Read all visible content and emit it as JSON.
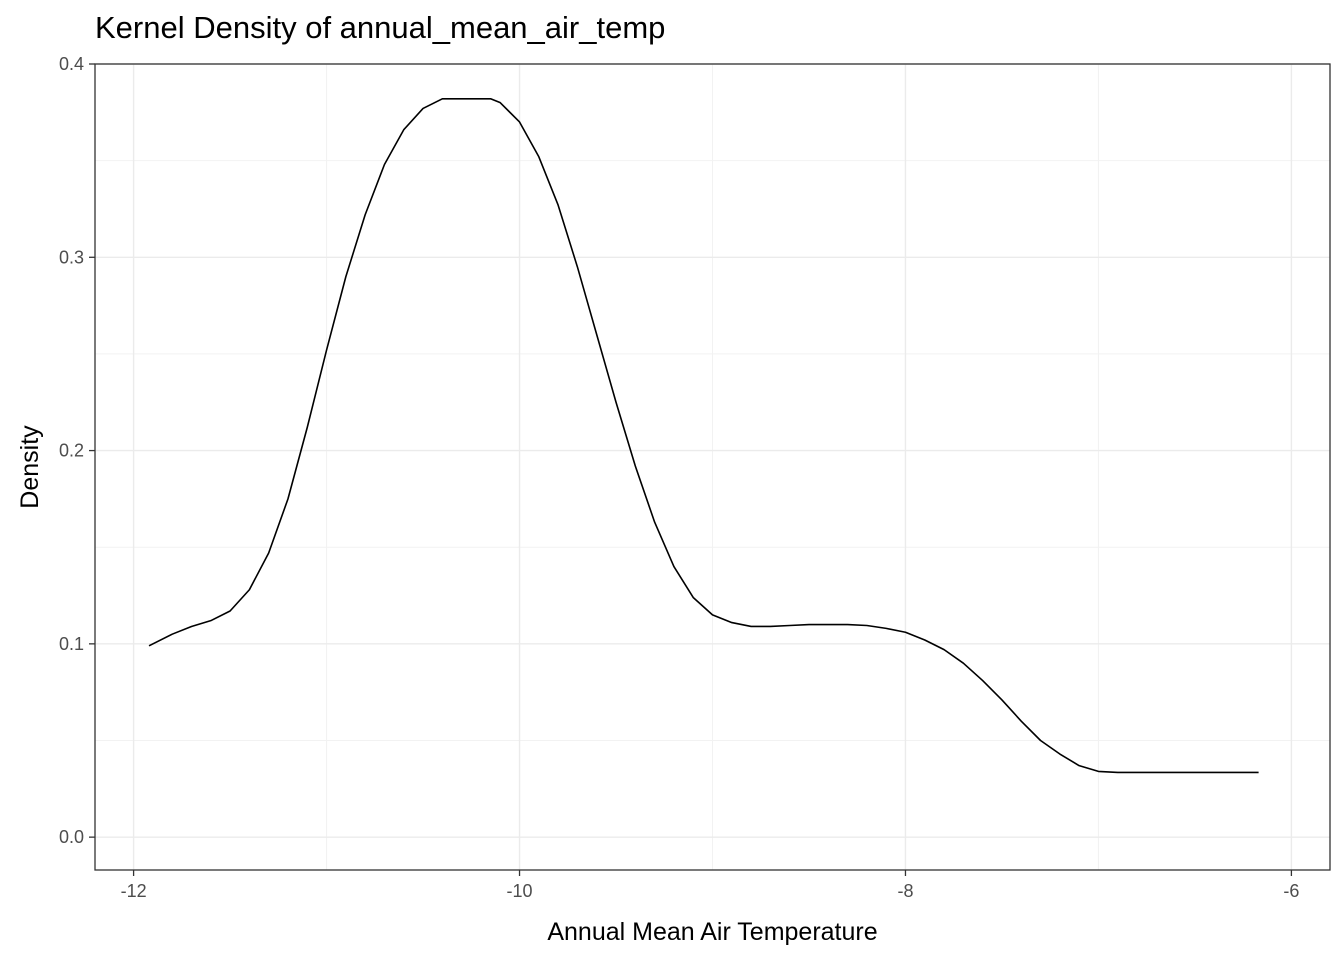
{
  "chart_data": {
    "type": "line",
    "title": "Kernel Density of annual_mean_air_temp",
    "xlabel": "Annual Mean Air Temperature",
    "ylabel": "Density",
    "xlim": [
      -12.2,
      -5.8
    ],
    "ylim": [
      -0.017,
      0.4
    ],
    "x_ticks": [
      -12,
      -10,
      -8,
      -6
    ],
    "x_tick_labels": [
      "-12",
      "-10",
      "-8",
      "-6"
    ],
    "y_ticks": [
      0.0,
      0.1,
      0.2,
      0.3,
      0.4
    ],
    "y_tick_labels": [
      "0.0",
      "0.1",
      "0.2",
      "0.3",
      "0.4"
    ],
    "grid": true,
    "series": [
      {
        "x": [
          -11.92,
          -11.8,
          -11.7,
          -11.6,
          -11.5,
          -11.4,
          -11.3,
          -11.2,
          -11.1,
          -11.0,
          -10.9,
          -10.8,
          -10.7,
          -10.6,
          -10.5,
          -10.4,
          -10.3,
          -10.2,
          -10.15,
          -10.1,
          -10.0,
          -9.9,
          -9.8,
          -9.7,
          -9.6,
          -9.5,
          -9.4,
          -9.3,
          -9.2,
          -9.1,
          -9.0,
          -8.9,
          -8.8,
          -8.7,
          -8.6,
          -8.5,
          -8.4,
          -8.3,
          -8.2,
          -8.1,
          -8.0,
          -7.9,
          -7.8,
          -7.7,
          -7.6,
          -7.5,
          -7.4,
          -7.3,
          -7.2,
          -7.1,
          -7.0,
          -6.9,
          -6.8,
          -6.7,
          -6.6,
          -6.5,
          -6.4,
          -6.3,
          -6.2,
          -6.17
        ],
        "y": [
          0.099,
          0.105,
          0.109,
          0.112,
          0.117,
          0.128,
          0.147,
          0.175,
          0.212,
          0.252,
          0.29,
          0.322,
          0.348,
          0.366,
          0.377,
          0.382,
          0.382,
          0.382,
          0.382,
          0.38,
          0.37,
          0.352,
          0.327,
          0.295,
          0.26,
          0.225,
          0.192,
          0.163,
          0.14,
          0.124,
          0.115,
          0.111,
          0.109,
          0.109,
          0.1095,
          0.11,
          0.11,
          0.11,
          0.1095,
          0.108,
          0.106,
          0.102,
          0.097,
          0.09,
          0.081,
          0.071,
          0.06,
          0.05,
          0.043,
          0.037,
          0.034,
          0.0335,
          0.0335,
          0.0335,
          0.0335,
          0.0335,
          0.0335,
          0.0335,
          0.0335,
          0.0335
        ]
      }
    ]
  }
}
